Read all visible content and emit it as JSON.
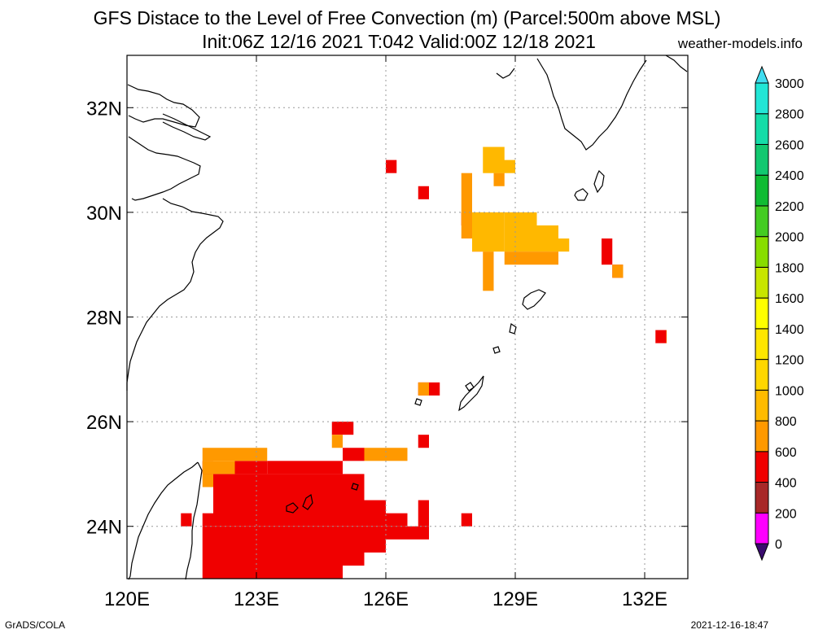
{
  "title_line1": "GFS Distace to the Level of Free Convection (m) (Parcel:500m above MSL)",
  "title_line2": "Init:06Z 12/16 2021 T:042 Valid:00Z 12/18 2021",
  "site": "weather-models.info",
  "footer_left": "GrADS/COLA",
  "footer_right": "2021-12-16-18:47",
  "map": {
    "lon_range": [
      120,
      133
    ],
    "lat_range": [
      23,
      33
    ],
    "lon_ticks": [
      "120E",
      "123E",
      "126E",
      "129E",
      "132E"
    ],
    "lon_tick_values": [
      120,
      123,
      126,
      129,
      132
    ],
    "lat_ticks": [
      "24N",
      "26N",
      "28N",
      "30N",
      "32N"
    ],
    "lat_tick_values": [
      24,
      26,
      28,
      30,
      32
    ],
    "grid": true,
    "cell_deg": 0.25
  },
  "colorbar": {
    "labels": [
      "0",
      "200",
      "400",
      "600",
      "800",
      "1000",
      "1200",
      "1400",
      "1600",
      "1800",
      "2000",
      "2200",
      "2400",
      "2600",
      "2800",
      "3000"
    ],
    "colors": [
      "#2b0a6e",
      "#ff00ff",
      "#a82828",
      "#f00000",
      "#ff9900",
      "#ffbb00",
      "#ffd700",
      "#ffe600",
      "#ffff00",
      "#c8e600",
      "#88dd00",
      "#44cc22",
      "#10bb33",
      "#12c870",
      "#15dca8",
      "#22e6d6"
    ],
    "under_color": "#3a0c6e",
    "over_color": "#40ddf0"
  },
  "field_colors": {
    "red": "#f00000",
    "orange": "#ff9900",
    "light_orange": "#ffb800"
  },
  "regions": [
    {
      "c": "red",
      "lon": [
        121.75,
        125.0
      ],
      "lat": [
        23.0,
        24.0
      ]
    },
    {
      "c": "red",
      "lon": [
        125.0,
        125.5
      ],
      "lat": [
        23.25,
        24.0
      ]
    },
    {
      "c": "red",
      "lon": [
        125.5,
        126.0
      ],
      "lat": [
        23.5,
        24.0
      ]
    },
    {
      "c": "red",
      "lon": [
        126.0,
        127.0
      ],
      "lat": [
        23.75,
        24.0
      ]
    },
    {
      "c": "red",
      "lon": [
        122.0,
        125.5
      ],
      "lat": [
        24.0,
        25.0
      ]
    },
    {
      "c": "red",
      "lon": [
        121.75,
        122.0
      ],
      "lat": [
        24.0,
        24.25
      ]
    },
    {
      "c": "red",
      "lon": [
        125.5,
        126.0
      ],
      "lat": [
        24.0,
        24.5
      ]
    },
    {
      "c": "red",
      "lon": [
        126.0,
        126.5
      ],
      "lat": [
        24.0,
        24.25
      ]
    },
    {
      "c": "red",
      "lon": [
        126.75,
        127.0
      ],
      "lat": [
        24.0,
        24.5
      ]
    },
    {
      "c": "red",
      "lon": [
        122.5,
        123.25
      ],
      "lat": [
        25.0,
        25.25
      ]
    },
    {
      "c": "red",
      "lon": [
        123.25,
        125.0
      ],
      "lat": [
        25.0,
        25.25
      ]
    },
    {
      "c": "red",
      "lon": [
        125.0,
        125.5
      ],
      "lat": [
        25.25,
        25.5
      ]
    },
    {
      "c": "red",
      "lon": [
        121.75,
        122.0
      ],
      "lat": [
        25.0,
        25.25
      ]
    },
    {
      "c": "red",
      "lon": [
        121.25,
        121.5
      ],
      "lat": [
        24.0,
        24.25
      ]
    },
    {
      "c": "red",
      "lon": [
        127.75,
        128.0
      ],
      "lat": [
        24.0,
        24.25
      ]
    },
    {
      "c": "red",
      "lon": [
        124.75,
        125.25
      ],
      "lat": [
        25.75,
        26.0
      ]
    },
    {
      "c": "red",
      "lon": [
        126.75,
        127.0
      ],
      "lat": [
        25.5,
        25.75
      ]
    },
    {
      "c": "red",
      "lon": [
        126.75,
        127.25
      ],
      "lat": [
        26.5,
        26.75
      ]
    },
    {
      "c": "red",
      "lon": [
        126.0,
        126.25
      ],
      "lat": [
        30.75,
        31.0
      ]
    },
    {
      "c": "red",
      "lon": [
        126.75,
        127.0
      ],
      "lat": [
        30.25,
        30.5
      ]
    },
    {
      "c": "red",
      "lon": [
        128.0,
        128.25
      ],
      "lat": [
        29.25,
        29.5
      ]
    },
    {
      "c": "red",
      "lon": [
        131.0,
        131.25
      ],
      "lat": [
        29.0,
        29.5
      ]
    },
    {
      "c": "red",
      "lon": [
        131.25,
        131.5
      ],
      "lat": [
        28.75,
        29.0
      ]
    },
    {
      "c": "red",
      "lon": [
        132.25,
        132.5
      ],
      "lat": [
        27.5,
        27.75
      ]
    },
    {
      "c": "red",
      "lon": [
        127.75,
        128.0
      ],
      "lat": [
        29.75,
        30.0
      ]
    },
    {
      "c": "orange",
      "lon": [
        121.75,
        123.25
      ],
      "lat": [
        25.25,
        25.5
      ]
    },
    {
      "c": "orange",
      "lon": [
        121.75,
        122.5
      ],
      "lat": [
        25.0,
        25.25
      ]
    },
    {
      "c": "orange",
      "lon": [
        121.75,
        122.0
      ],
      "lat": [
        24.75,
        25.0
      ]
    },
    {
      "c": "orange",
      "lon": [
        125.5,
        126.5
      ],
      "lat": [
        25.25,
        25.5
      ]
    },
    {
      "c": "orange",
      "lon": [
        124.75,
        125.0
      ],
      "lat": [
        25.5,
        25.75
      ]
    },
    {
      "c": "orange",
      "lon": [
        126.75,
        127.0
      ],
      "lat": [
        26.5,
        26.75
      ]
    },
    {
      "c": "orange",
      "lon": [
        127.75,
        128.0
      ],
      "lat": [
        29.5,
        30.75
      ]
    },
    {
      "c": "light_orange",
      "lon": [
        128.0,
        128.75
      ],
      "lat": [
        29.25,
        30.0
      ]
    },
    {
      "c": "light_orange",
      "lon": [
        128.75,
        129.5
      ],
      "lat": [
        29.25,
        30.0
      ]
    },
    {
      "c": "light_orange",
      "lon": [
        129.5,
        130.0
      ],
      "lat": [
        29.25,
        29.75
      ]
    },
    {
      "c": "light_orange",
      "lon": [
        130.0,
        130.25
      ],
      "lat": [
        29.25,
        29.5
      ]
    },
    {
      "c": "orange",
      "lon": [
        128.75,
        129.5
      ],
      "lat": [
        29.0,
        29.25
      ]
    },
    {
      "c": "orange",
      "lon": [
        129.5,
        130.0
      ],
      "lat": [
        29.0,
        29.25
      ]
    },
    {
      "c": "orange",
      "lon": [
        128.25,
        128.5
      ],
      "lat": [
        28.5,
        29.25
      ]
    },
    {
      "c": "light_orange",
      "lon": [
        128.25,
        128.75
      ],
      "lat": [
        30.75,
        31.25
      ]
    },
    {
      "c": "light_orange",
      "lon": [
        128.5,
        129.0
      ],
      "lat": [
        30.75,
        31.0
      ]
    },
    {
      "c": "orange",
      "lon": [
        128.5,
        128.75
      ],
      "lat": [
        30.5,
        30.75
      ]
    },
    {
      "c": "orange",
      "lon": [
        131.25,
        131.5
      ],
      "lat": [
        28.75,
        29.0
      ]
    },
    {
      "c": "orange",
      "lon": [
        132.5,
        132.5
      ],
      "lat": [
        27.5,
        27.75
      ]
    }
  ]
}
